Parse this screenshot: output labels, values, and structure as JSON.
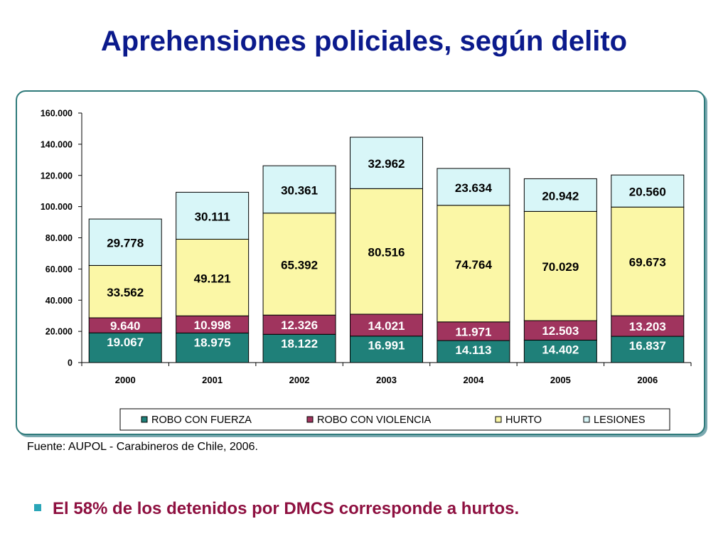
{
  "title": "Aprehensiones policiales, según delito",
  "source": "Fuente: AUPOL -  Carabineros de Chile, 2006.",
  "bullet": "El 58% de los detenidos por DMCS corresponde a hurtos.",
  "colors": {
    "title": "#0b1a8c",
    "robo_fuerza": "#1f8079",
    "robo_violencia": "#a0345e",
    "hurto": "#fbf7a6",
    "lesiones": "#d8f6f8",
    "frame": "#2e7a7a",
    "bullet_text": "#8e1040",
    "bullet_mark": "#2aa6b8"
  },
  "chart_data": {
    "type": "bar",
    "stacked": true,
    "categories": [
      "2000",
      "2001",
      "2002",
      "2003",
      "2004",
      "2005",
      "2006"
    ],
    "series": [
      {
        "name": "ROBO CON FUERZA",
        "values": [
          19067,
          18975,
          18122,
          16991,
          14113,
          14402,
          16837
        ],
        "labels": [
          "19.067",
          "18.975",
          "18.122",
          "16.991",
          "14.113",
          "14.402",
          "16.837"
        ]
      },
      {
        "name": "ROBO CON VIOLENCIA",
        "values": [
          9640,
          10998,
          12326,
          14021,
          11971,
          12503,
          13203
        ],
        "labels": [
          "9.640",
          "10.998",
          "12.326",
          "14.021",
          "11.971",
          "12.503",
          "13.203"
        ]
      },
      {
        "name": "HURTO",
        "values": [
          33562,
          49121,
          65392,
          80516,
          74764,
          70029,
          69673
        ],
        "labels": [
          "33.562",
          "49.121",
          "65.392",
          "80.516",
          "74.764",
          "70.029",
          "69.673"
        ]
      },
      {
        "name": "LESIONES",
        "values": [
          29778,
          30111,
          30361,
          32962,
          23634,
          20942,
          20560
        ],
        "labels": [
          "29.778",
          "30.111",
          "30.361",
          "32.962",
          "23.634",
          "20.942",
          "20.560"
        ]
      }
    ],
    "yticks": [
      0,
      20000,
      40000,
      60000,
      80000,
      100000,
      120000,
      140000,
      160000
    ],
    "ytick_labels": [
      "0",
      "20.000",
      "40.000",
      "60.000",
      "80.000",
      "100.000",
      "120.000",
      "140.000",
      "160.000"
    ],
    "ylim": [
      0,
      160000
    ],
    "grid": false,
    "legend_position": "bottom",
    "title": "",
    "xlabel": "",
    "ylabel": ""
  }
}
